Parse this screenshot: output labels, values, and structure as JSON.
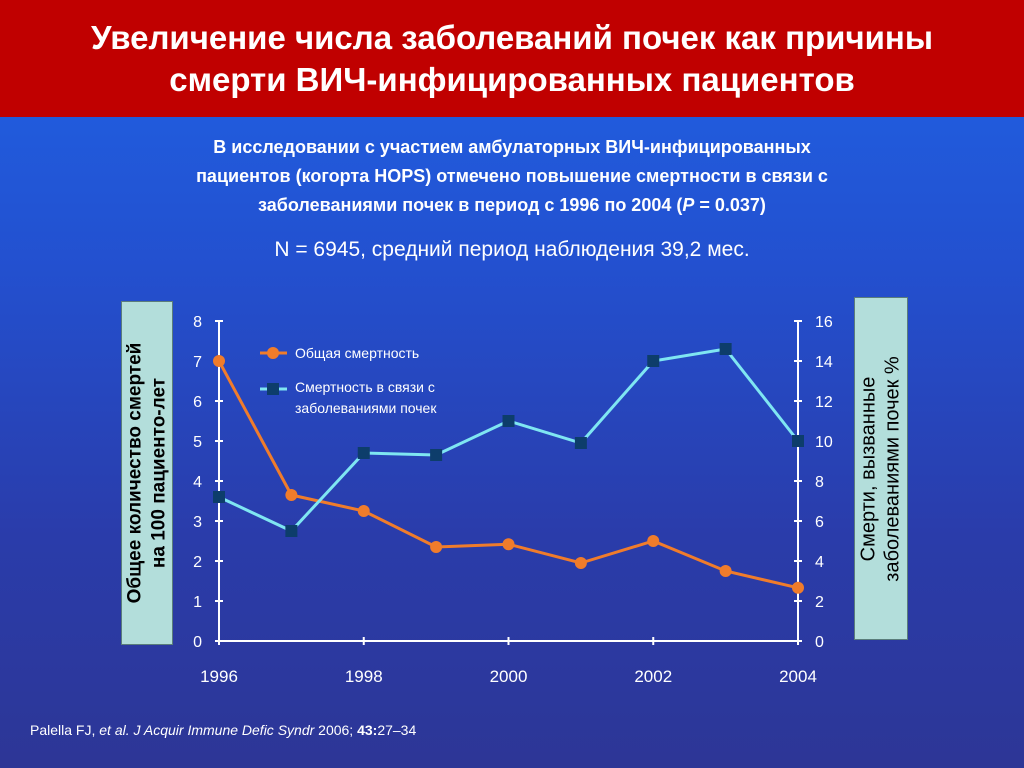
{
  "header": {
    "title_line1": "Увеличение числа заболеваний почек как причины",
    "title_line2": "смерти ВИЧ-инфицированных пациентов"
  },
  "intro": {
    "line1": "В исследовании с участием амбулаторных ВИЧ-инфицированных",
    "line2": "пациентов (когорта HOPS)  отмечено повышение смертности в связи с",
    "line3_pre": "заболеваниями почек в период с 1996 по  2004 (",
    "line3_p": "P",
    "line3_post": " = 0.037)"
  },
  "cohort_note": "N = 6945, средний период наблюдения 39,2 мес.",
  "chart_data": {
    "type": "line",
    "x": [
      1996,
      1997,
      1998,
      1999,
      2000,
      2001,
      2002,
      2003,
      2004
    ],
    "x_tick_labels": [
      "1996",
      "1998",
      "2000",
      "2002",
      "2004"
    ],
    "y_left_label": "Общее количество смертей на 100 пациенто-лет",
    "y_left_label_line1": "Общее количество смертей",
    "y_left_label_line2": "на 100 пациенто-лет",
    "y_left_lim": [
      0,
      8
    ],
    "y_left_ticks": [
      "0",
      "1",
      "2",
      "3",
      "4",
      "5",
      "6",
      "7",
      "8"
    ],
    "y_right_label": "Смерти, вызванные заболеваниями почек %",
    "y_right_label_line1": "Смерти, вызванные",
    "y_right_label_line2": "заболеваниями почек %",
    "y_right_lim": [
      0,
      16
    ],
    "y_right_ticks": [
      "0",
      "2",
      "4",
      "6",
      "8",
      "10",
      "12",
      "14",
      "16"
    ],
    "grid": false,
    "legend_position": "top-left",
    "series": [
      {
        "name": "Общая смертность",
        "axis": "left",
        "color": "#f07c2b",
        "marker": "circle",
        "values": [
          7.0,
          3.65,
          3.25,
          2.35,
          2.42,
          1.95,
          2.5,
          1.75,
          1.33
        ]
      },
      {
        "name": "Смертность в связи с заболеваниями почек",
        "legend_line1": "Смертность в связи с",
        "legend_line2": "заболеваниями почек",
        "axis": "right",
        "color": "#7fe6f2",
        "marker_color": "#0d3d6b",
        "marker": "square",
        "values": [
          7.2,
          5.5,
          9.4,
          9.3,
          11.0,
          9.9,
          14.0,
          14.6,
          10.0
        ]
      }
    ]
  },
  "citation": {
    "author": "Palella FJ, ",
    "etal": "et al.",
    "journal": " J Acquir Immune Defic Syndr",
    "year": " 2006; ",
    "volume": "43:",
    "pages": "27–34"
  }
}
